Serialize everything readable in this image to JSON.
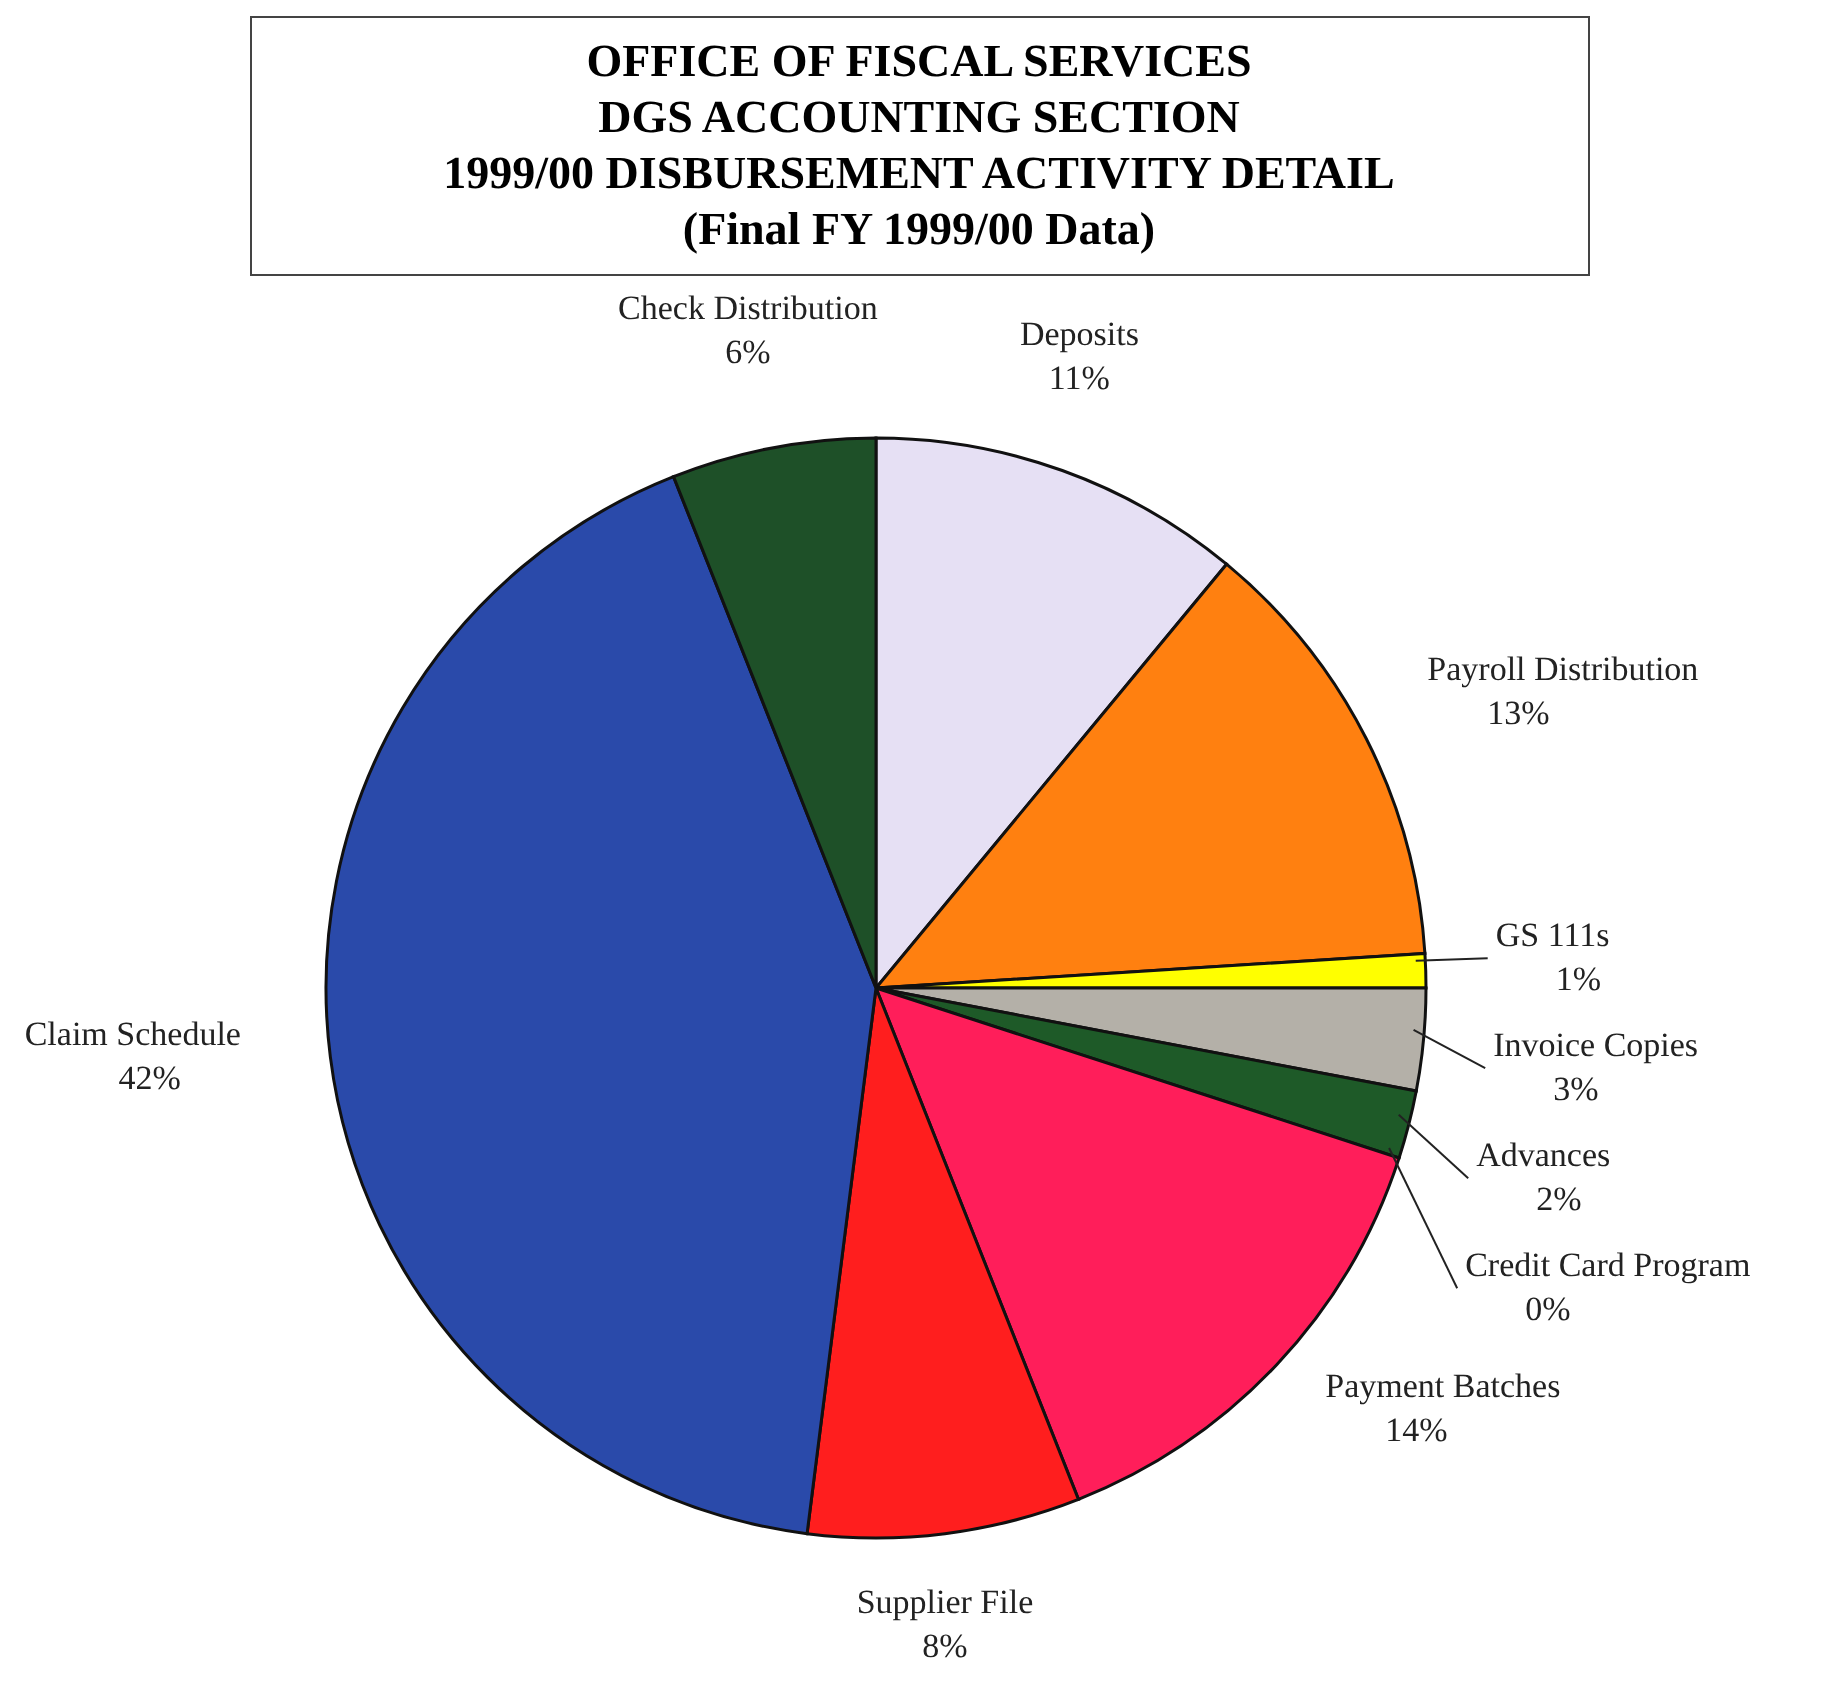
{
  "chart_data": {
    "type": "pie",
    "title": "OFFICE OF FISCAL SERVICES\nDGS ACCOUNTING SECTION\n1999/00 DISBURSEMENT ACTIVITY DETAIL",
    "subtitle": "(Final FY 1999/00 Data)",
    "categories": [
      "Deposits",
      "Payroll Distribution",
      "GS 111s",
      "Invoice Copies",
      "Advances",
      "Credit Card Program",
      "Payment Batches",
      "Supplier File",
      "Claim Schedule",
      "Check Distribution"
    ],
    "values": [
      11,
      13,
      1,
      3,
      2,
      0,
      14,
      8,
      42,
      6
    ],
    "value_labels": [
      "11%",
      "13%",
      "1%",
      "3%",
      "2%",
      "0%",
      "14%",
      "8%",
      "42%",
      "6%"
    ],
    "colors": [
      "#e6e0f4",
      "#ff8010",
      "#ffff00",
      "#b4b0a8",
      "#1e5a28",
      "#800000",
      "#ff1e5a",
      "#ff1e1e",
      "#2a4aaa",
      "#1e5028"
    ],
    "legend": false
  }
}
